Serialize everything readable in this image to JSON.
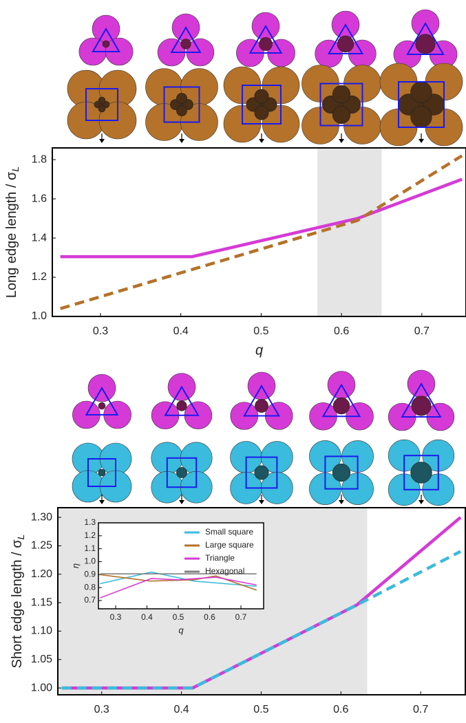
{
  "chart_data": [
    {
      "type": "line",
      "x_label": "q",
      "y_label": "Long edge length / σ",
      "y_label_sub": "L",
      "xlim": [
        0.24,
        0.755
      ],
      "ylim": [
        1.0,
        1.86
      ],
      "xticks": [
        0.3,
        0.4,
        0.5,
        0.6,
        0.7
      ],
      "yticks": [
        {
          "value": 1.0,
          "label": "1.0"
        },
        1.2,
        1.4,
        1.6,
        1.8
      ],
      "shade": [
        0.57,
        0.65
      ],
      "series": [
        {
          "color": "#d63ad6",
          "dash": false,
          "x": [
            0.25,
            0.414,
            0.62,
            0.75
          ],
          "values": [
            1.305,
            1.305,
            1.5,
            1.7
          ]
        },
        {
          "color": "#b5722a",
          "dash": true,
          "x": [
            0.25,
            0.62,
            0.75
          ],
          "values": [
            1.04,
            1.49,
            1.82
          ]
        }
      ]
    },
    {
      "type": "line",
      "x_label": "q",
      "y_label": "Short edge length / σ",
      "y_label_sub": "L",
      "xlim": [
        0.245,
        0.756
      ],
      "ylim": [
        0.988,
        1.317
      ],
      "xticks": [
        0.3,
        0.4,
        0.5,
        0.6,
        0.7
      ],
      "yticks": [
        {
          "value": 1.0,
          "label": "1.00"
        },
        1.05,
        {
          "value": 1.1,
          "label": "1.10"
        },
        1.15,
        {
          "value": 1.2,
          "label": "1.20"
        },
        1.25,
        {
          "value": 1.3,
          "label": "1.30"
        }
      ],
      "shade": [
        0.245,
        0.633
      ],
      "series": [
        {
          "color": "#d63ad6",
          "dash": false,
          "x": [
            0.25,
            0.414,
            0.62,
            0.75
          ],
          "values": [
            1.0,
            1.0,
            1.146,
            1.3
          ]
        },
        {
          "color": "#3bbbdd",
          "dash": true,
          "x": [
            0.25,
            0.414,
            0.62,
            0.75
          ],
          "values": [
            1.0,
            1.0,
            1.146,
            1.24
          ]
        }
      ]
    },
    {
      "type": "line",
      "x_label": "q",
      "y_label": "η",
      "xlim": [
        0.245,
        0.7725
      ],
      "ylim": [
        0.636,
        1.3
      ],
      "xticks": [
        0.3,
        0.4,
        0.5,
        0.6,
        0.7
      ],
      "yticks": [
        0.7,
        0.8,
        0.9,
        {
          "value": 1.0,
          "label": "1.0"
        },
        1.1,
        1.2,
        1.3
      ],
      "series": [
        {
          "name": "Small square",
          "color": "#3bbbdd",
          "dash": false,
          "x": [
            0.25,
            0.414,
            0.55,
            0.75
          ],
          "values": [
            0.83,
            0.92,
            0.85,
            0.81
          ]
        },
        {
          "name": "Large square",
          "color": "#b5722a",
          "dash": false,
          "x": [
            0.25,
            0.41,
            0.55,
            0.62,
            0.75
          ],
          "values": [
            0.9,
            0.85,
            0.86,
            0.89,
            0.78
          ]
        },
        {
          "name": "Triangle",
          "color": "#d63ad6",
          "dash": false,
          "x": [
            0.25,
            0.414,
            0.5,
            0.62,
            0.75
          ],
          "values": [
            0.72,
            0.87,
            0.86,
            0.88,
            0.82
          ]
        },
        {
          "name": "Hexagonal",
          "color": "#808080",
          "dash": false,
          "x": [
            0.25,
            0.75
          ],
          "values": [
            0.906,
            0.906
          ]
        }
      ]
    }
  ]
}
